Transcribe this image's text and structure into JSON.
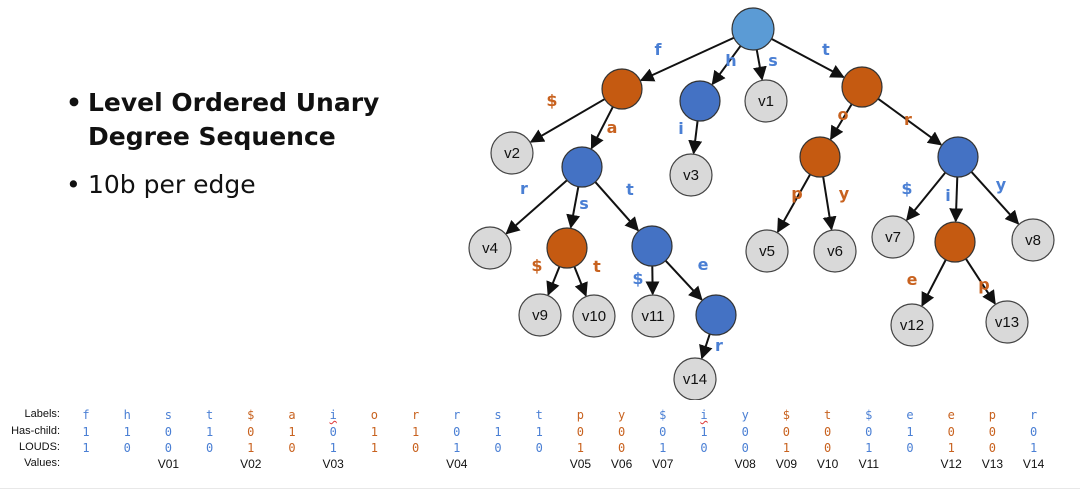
{
  "bullets": [
    "Level Ordered Unary Degree Sequence",
    "10b per edge"
  ],
  "colors": {
    "root": "#5b9bd5",
    "blue_node": "#4472c4",
    "orange_node": "#c55a11",
    "leaf": "#d9d9d9",
    "blue_text": "#4a7fd4",
    "orange_text": "#c8621f"
  },
  "tree": {
    "nodes": [
      {
        "id": "root",
        "kind": "root",
        "text": ""
      },
      {
        "id": "n_f",
        "kind": "orange",
        "text": ""
      },
      {
        "id": "n_h",
        "kind": "blue",
        "text": ""
      },
      {
        "id": "v1",
        "kind": "leaf",
        "text": "v1"
      },
      {
        "id": "n_t",
        "kind": "orange",
        "text": ""
      },
      {
        "id": "v2",
        "kind": "leaf",
        "text": "v2"
      },
      {
        "id": "n_fa",
        "kind": "blue",
        "text": ""
      },
      {
        "id": "v3",
        "kind": "leaf",
        "text": "v3"
      },
      {
        "id": "n_to",
        "kind": "orange",
        "text": ""
      },
      {
        "id": "n_tr",
        "kind": "blue",
        "text": ""
      },
      {
        "id": "v4",
        "kind": "leaf",
        "text": "v4"
      },
      {
        "id": "n_fas",
        "kind": "orange",
        "text": ""
      },
      {
        "id": "n_fat",
        "kind": "blue",
        "text": ""
      },
      {
        "id": "v5",
        "kind": "leaf",
        "text": "v5"
      },
      {
        "id": "v6",
        "kind": "leaf",
        "text": "v6"
      },
      {
        "id": "v7",
        "kind": "leaf",
        "text": "v7"
      },
      {
        "id": "n_tri",
        "kind": "orange",
        "text": ""
      },
      {
        "id": "v8",
        "kind": "leaf",
        "text": "v8"
      },
      {
        "id": "v9",
        "kind": "leaf",
        "text": "v9"
      },
      {
        "id": "v10",
        "kind": "leaf",
        "text": "v10"
      },
      {
        "id": "v11",
        "kind": "leaf",
        "text": "v11"
      },
      {
        "id": "n_fate",
        "kind": "blue",
        "text": ""
      },
      {
        "id": "v12",
        "kind": "leaf",
        "text": "v12"
      },
      {
        "id": "v13",
        "kind": "leaf",
        "text": "v13"
      },
      {
        "id": "v14",
        "kind": "leaf",
        "text": "v14"
      }
    ],
    "edges": [
      {
        "from": "root",
        "to": "n_f",
        "label": "f",
        "color": "blue"
      },
      {
        "from": "root",
        "to": "n_h",
        "label": "h",
        "color": "blue"
      },
      {
        "from": "root",
        "to": "v1",
        "label": "s",
        "color": "blue"
      },
      {
        "from": "root",
        "to": "n_t",
        "label": "t",
        "color": "blue"
      },
      {
        "from": "n_f",
        "to": "v2",
        "label": "$",
        "color": "orange"
      },
      {
        "from": "n_f",
        "to": "n_fa",
        "label": "a",
        "color": "orange"
      },
      {
        "from": "n_h",
        "to": "v3",
        "label": "i",
        "color": "blue"
      },
      {
        "from": "n_t",
        "to": "n_to",
        "label": "o",
        "color": "orange"
      },
      {
        "from": "n_t",
        "to": "n_tr",
        "label": "r",
        "color": "orange"
      },
      {
        "from": "n_fa",
        "to": "v4",
        "label": "r",
        "color": "blue"
      },
      {
        "from": "n_fa",
        "to": "n_fas",
        "label": "s",
        "color": "blue"
      },
      {
        "from": "n_fa",
        "to": "n_fat",
        "label": "t",
        "color": "blue"
      },
      {
        "from": "n_to",
        "to": "v5",
        "label": "p",
        "color": "orange"
      },
      {
        "from": "n_to",
        "to": "v6",
        "label": "y",
        "color": "orange"
      },
      {
        "from": "n_tr",
        "to": "v7",
        "label": "$",
        "color": "blue"
      },
      {
        "from": "n_tr",
        "to": "n_tri",
        "label": "i",
        "color": "blue"
      },
      {
        "from": "n_tr",
        "to": "v8",
        "label": "y",
        "color": "blue"
      },
      {
        "from": "n_fas",
        "to": "v9",
        "label": "$",
        "color": "orange"
      },
      {
        "from": "n_fas",
        "to": "v10",
        "label": "t",
        "color": "orange"
      },
      {
        "from": "n_fat",
        "to": "v11",
        "label": "$",
        "color": "blue"
      },
      {
        "from": "n_fat",
        "to": "n_fate",
        "label": "e",
        "color": "blue"
      },
      {
        "from": "n_tri",
        "to": "v12",
        "label": "e",
        "color": "orange"
      },
      {
        "from": "n_tri",
        "to": "v13",
        "label": "p",
        "color": "orange"
      },
      {
        "from": "n_fate",
        "to": "v14",
        "label": "r",
        "color": "blue"
      }
    ]
  },
  "sequence": {
    "row_labels": [
      "Labels:",
      "Has-child:",
      "LOUDS:",
      "Values:"
    ],
    "labels": [
      "f",
      "h",
      "s",
      "t",
      "$",
      "a",
      "i",
      "o",
      "r",
      "r",
      "s",
      "t",
      "p",
      "y",
      "$",
      "i",
      "y",
      "$",
      "t",
      "$",
      "e",
      "e",
      "p",
      "r"
    ],
    "colors": [
      "blue",
      "blue",
      "blue",
      "blue",
      "orange",
      "orange",
      "blue",
      "orange",
      "orange",
      "blue",
      "blue",
      "blue",
      "orange",
      "orange",
      "blue",
      "blue",
      "blue",
      "orange",
      "orange",
      "blue",
      "blue",
      "orange",
      "orange",
      "blue"
    ],
    "has_child": [
      "1",
      "1",
      "0",
      "1",
      "0",
      "1",
      "0",
      "1",
      "1",
      "0",
      "1",
      "1",
      "0",
      "0",
      "0",
      "1",
      "0",
      "0",
      "0",
      "0",
      "1",
      "0",
      "0",
      "0"
    ],
    "louds": [
      "1",
      "0",
      "0",
      "0",
      "1",
      "0",
      "1",
      "1",
      "0",
      "1",
      "0",
      "0",
      "1",
      "0",
      "1",
      "0",
      "0",
      "1",
      "0",
      "1",
      "0",
      "1",
      "0",
      "1"
    ],
    "values": [
      "",
      "",
      "V01",
      "",
      "V02",
      "",
      "V03",
      "",
      "",
      "V04",
      "",
      "",
      "V05",
      "V06",
      "V07",
      "",
      "V08",
      "V09",
      "V10",
      "V11",
      "",
      "V12",
      "V13",
      "V14"
    ]
  }
}
